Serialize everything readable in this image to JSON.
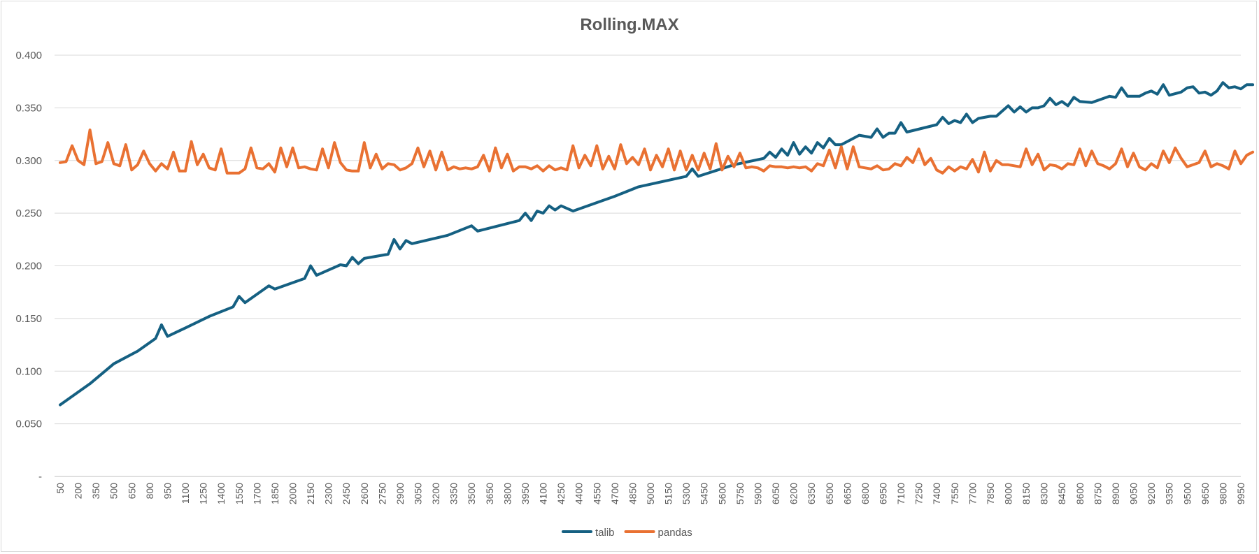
{
  "chart_data": {
    "type": "line",
    "title": "Rolling.MAX",
    "xlabel": "",
    "ylabel": "",
    "ylim": [
      0,
      0.4
    ],
    "y_ticks": [
      "-",
      "0.050",
      "0.100",
      "0.150",
      "0.200",
      "0.250",
      "0.300",
      "0.350",
      "0.400"
    ],
    "grid": true,
    "legend_position": "bottom",
    "x_start": 50,
    "x_step": 50,
    "x_count": 199,
    "x_tick_every": 3,
    "series": [
      {
        "name": "talib",
        "color": "#156082",
        "anchors": [
          [
            50,
            0.068
          ],
          [
            300,
            0.088
          ],
          [
            500,
            0.107
          ],
          [
            700,
            0.119
          ],
          [
            850,
            0.131
          ],
          [
            900,
            0.144
          ],
          [
            950,
            0.133
          ],
          [
            1100,
            0.141
          ],
          [
            1300,
            0.152
          ],
          [
            1500,
            0.161
          ],
          [
            1550,
            0.171
          ],
          [
            1600,
            0.165
          ],
          [
            1800,
            0.181
          ],
          [
            1850,
            0.178
          ],
          [
            2050,
            0.186
          ],
          [
            2100,
            0.188
          ],
          [
            2150,
            0.2
          ],
          [
            2200,
            0.191
          ],
          [
            2400,
            0.201
          ],
          [
            2450,
            0.2
          ],
          [
            2500,
            0.208
          ],
          [
            2550,
            0.202
          ],
          [
            2600,
            0.207
          ],
          [
            2800,
            0.211
          ],
          [
            2850,
            0.225
          ],
          [
            2900,
            0.216
          ],
          [
            2950,
            0.224
          ],
          [
            3000,
            0.221
          ],
          [
            3300,
            0.229
          ],
          [
            3500,
            0.238
          ],
          [
            3550,
            0.233
          ],
          [
            3900,
            0.243
          ],
          [
            3950,
            0.25
          ],
          [
            4000,
            0.243
          ],
          [
            4050,
            0.252
          ],
          [
            4100,
            0.25
          ],
          [
            4150,
            0.257
          ],
          [
            4200,
            0.253
          ],
          [
            4250,
            0.257
          ],
          [
            4350,
            0.252
          ],
          [
            4600,
            0.262
          ],
          [
            4700,
            0.266
          ],
          [
            4900,
            0.275
          ],
          [
            5300,
            0.285
          ],
          [
            5350,
            0.292
          ],
          [
            5400,
            0.285
          ],
          [
            5700,
            0.296
          ],
          [
            5950,
            0.302
          ],
          [
            6000,
            0.308
          ],
          [
            6050,
            0.303
          ],
          [
            6100,
            0.311
          ],
          [
            6150,
            0.305
          ],
          [
            6200,
            0.317
          ],
          [
            6250,
            0.306
          ],
          [
            6300,
            0.313
          ],
          [
            6350,
            0.307
          ],
          [
            6400,
            0.317
          ],
          [
            6450,
            0.312
          ],
          [
            6500,
            0.321
          ],
          [
            6550,
            0.315
          ],
          [
            6600,
            0.315
          ],
          [
            6750,
            0.324
          ],
          [
            6850,
            0.322
          ],
          [
            6900,
            0.33
          ],
          [
            6950,
            0.322
          ],
          [
            7000,
            0.326
          ],
          [
            7050,
            0.326
          ],
          [
            7100,
            0.336
          ],
          [
            7150,
            0.327
          ],
          [
            7400,
            0.334
          ],
          [
            7450,
            0.341
          ],
          [
            7500,
            0.335
          ],
          [
            7550,
            0.338
          ],
          [
            7600,
            0.336
          ],
          [
            7650,
            0.344
          ],
          [
            7700,
            0.336
          ],
          [
            7750,
            0.34
          ],
          [
            7850,
            0.342
          ],
          [
            7900,
            0.342
          ],
          [
            8000,
            0.352
          ],
          [
            8050,
            0.346
          ],
          [
            8100,
            0.351
          ],
          [
            8150,
            0.346
          ],
          [
            8200,
            0.35
          ],
          [
            8250,
            0.35
          ],
          [
            8300,
            0.352
          ],
          [
            8350,
            0.359
          ],
          [
            8400,
            0.353
          ],
          [
            8450,
            0.356
          ],
          [
            8500,
            0.352
          ],
          [
            8550,
            0.36
          ],
          [
            8600,
            0.356
          ],
          [
            8700,
            0.355
          ],
          [
            8850,
            0.361
          ],
          [
            8900,
            0.36
          ],
          [
            8950,
            0.369
          ],
          [
            9000,
            0.361
          ],
          [
            9100,
            0.361
          ],
          [
            9150,
            0.364
          ],
          [
            9200,
            0.366
          ],
          [
            9250,
            0.363
          ],
          [
            9300,
            0.372
          ],
          [
            9350,
            0.362
          ],
          [
            9450,
            0.365
          ],
          [
            9500,
            0.369
          ],
          [
            9550,
            0.37
          ],
          [
            9600,
            0.364
          ],
          [
            9650,
            0.365
          ],
          [
            9700,
            0.362
          ],
          [
            9750,
            0.366
          ],
          [
            9800,
            0.374
          ],
          [
            9850,
            0.369
          ],
          [
            9900,
            0.37
          ],
          [
            9950,
            0.368
          ],
          [
            10000,
            0.372
          ],
          [
            10050,
            0.372
          ]
        ]
      },
      {
        "name": "pandas",
        "color": "#E97132",
        "anchors": [
          [
            50,
            0.298
          ],
          [
            100,
            0.299
          ],
          [
            150,
            0.314
          ],
          [
            200,
            0.3
          ],
          [
            250,
            0.296
          ],
          [
            300,
            0.329
          ],
          [
            350,
            0.297
          ],
          [
            400,
            0.299
          ],
          [
            450,
            0.317
          ],
          [
            500,
            0.297
          ],
          [
            550,
            0.295
          ],
          [
            600,
            0.315
          ],
          [
            650,
            0.291
          ],
          [
            700,
            0.296
          ],
          [
            750,
            0.309
          ],
          [
            800,
            0.297
          ],
          [
            850,
            0.29
          ],
          [
            900,
            0.297
          ],
          [
            950,
            0.292
          ],
          [
            1000,
            0.308
          ],
          [
            1050,
            0.29
          ],
          [
            1100,
            0.29
          ],
          [
            1150,
            0.318
          ],
          [
            1200,
            0.296
          ],
          [
            1250,
            0.306
          ],
          [
            1300,
            0.293
          ],
          [
            1350,
            0.291
          ],
          [
            1400,
            0.311
          ],
          [
            1450,
            0.288
          ],
          [
            1500,
            0.288
          ],
          [
            1550,
            0.288
          ],
          [
            1600,
            0.292
          ],
          [
            1650,
            0.312
          ],
          [
            1700,
            0.293
          ],
          [
            1750,
            0.292
          ],
          [
            1800,
            0.297
          ],
          [
            1850,
            0.289
          ],
          [
            1900,
            0.312
          ],
          [
            1950,
            0.294
          ],
          [
            2000,
            0.312
          ],
          [
            2050,
            0.293
          ],
          [
            2100,
            0.294
          ],
          [
            2150,
            0.292
          ],
          [
            2200,
            0.291
          ],
          [
            2250,
            0.311
          ],
          [
            2300,
            0.293
          ],
          [
            2350,
            0.317
          ],
          [
            2400,
            0.298
          ],
          [
            2450,
            0.291
          ],
          [
            2500,
            0.29
          ],
          [
            2550,
            0.29
          ],
          [
            2600,
            0.317
          ],
          [
            2650,
            0.293
          ],
          [
            2700,
            0.306
          ],
          [
            2750,
            0.292
          ],
          [
            2800,
            0.297
          ],
          [
            2850,
            0.296
          ],
          [
            2900,
            0.291
          ],
          [
            2950,
            0.293
          ],
          [
            3000,
            0.297
          ],
          [
            3050,
            0.312
          ],
          [
            3100,
            0.294
          ],
          [
            3150,
            0.309
          ],
          [
            3200,
            0.291
          ],
          [
            3250,
            0.308
          ],
          [
            3300,
            0.291
          ],
          [
            3350,
            0.294
          ],
          [
            3400,
            0.292
          ],
          [
            3450,
            0.293
          ],
          [
            3500,
            0.292
          ],
          [
            3550,
            0.294
          ],
          [
            3600,
            0.305
          ],
          [
            3650,
            0.29
          ],
          [
            3700,
            0.312
          ],
          [
            3750,
            0.293
          ],
          [
            3800,
            0.306
          ],
          [
            3850,
            0.29
          ],
          [
            3900,
            0.294
          ],
          [
            3950,
            0.294
          ],
          [
            4000,
            0.292
          ],
          [
            4050,
            0.295
          ],
          [
            4100,
            0.29
          ],
          [
            4150,
            0.295
          ],
          [
            4200,
            0.291
          ],
          [
            4250,
            0.293
          ],
          [
            4300,
            0.291
          ],
          [
            4350,
            0.314
          ],
          [
            4400,
            0.293
          ],
          [
            4450,
            0.305
          ],
          [
            4500,
            0.295
          ],
          [
            4550,
            0.314
          ],
          [
            4600,
            0.292
          ],
          [
            4650,
            0.304
          ],
          [
            4700,
            0.292
          ],
          [
            4750,
            0.315
          ],
          [
            4800,
            0.297
          ],
          [
            4850,
            0.303
          ],
          [
            4900,
            0.296
          ],
          [
            4950,
            0.311
          ],
          [
            5000,
            0.291
          ],
          [
            5050,
            0.305
          ],
          [
            5100,
            0.294
          ],
          [
            5150,
            0.311
          ],
          [
            5200,
            0.291
          ],
          [
            5250,
            0.309
          ],
          [
            5300,
            0.291
          ],
          [
            5350,
            0.305
          ],
          [
            5400,
            0.291
          ],
          [
            5450,
            0.307
          ],
          [
            5500,
            0.292
          ],
          [
            5550,
            0.316
          ],
          [
            5600,
            0.291
          ],
          [
            5650,
            0.304
          ],
          [
            5700,
            0.294
          ],
          [
            5750,
            0.307
          ],
          [
            5800,
            0.293
          ],
          [
            5850,
            0.294
          ],
          [
            5900,
            0.293
          ],
          [
            5950,
            0.29
          ],
          [
            6000,
            0.295
          ],
          [
            6050,
            0.294
          ],
          [
            6100,
            0.294
          ],
          [
            6150,
            0.293
          ],
          [
            6200,
            0.294
          ],
          [
            6250,
            0.293
          ],
          [
            6300,
            0.294
          ],
          [
            6350,
            0.29
          ],
          [
            6400,
            0.297
          ],
          [
            6450,
            0.295
          ],
          [
            6500,
            0.31
          ],
          [
            6550,
            0.293
          ],
          [
            6600,
            0.313
          ],
          [
            6650,
            0.292
          ],
          [
            6700,
            0.313
          ],
          [
            6750,
            0.294
          ],
          [
            6800,
            0.293
          ],
          [
            6850,
            0.292
          ],
          [
            6900,
            0.295
          ],
          [
            6950,
            0.291
          ],
          [
            7000,
            0.292
          ],
          [
            7050,
            0.297
          ],
          [
            7100,
            0.295
          ],
          [
            7150,
            0.303
          ],
          [
            7200,
            0.298
          ],
          [
            7250,
            0.311
          ],
          [
            7300,
            0.296
          ],
          [
            7350,
            0.302
          ],
          [
            7400,
            0.291
          ],
          [
            7450,
            0.288
          ],
          [
            7500,
            0.294
          ],
          [
            7550,
            0.29
          ],
          [
            7600,
            0.294
          ],
          [
            7650,
            0.292
          ],
          [
            7700,
            0.301
          ],
          [
            7750,
            0.289
          ],
          [
            7800,
            0.308
          ],
          [
            7850,
            0.29
          ],
          [
            7900,
            0.3
          ],
          [
            7950,
            0.296
          ],
          [
            8000,
            0.296
          ],
          [
            8050,
            0.295
          ],
          [
            8100,
            0.294
          ],
          [
            8150,
            0.311
          ],
          [
            8200,
            0.296
          ],
          [
            8250,
            0.306
          ],
          [
            8300,
            0.291
          ],
          [
            8350,
            0.296
          ],
          [
            8400,
            0.295
          ],
          [
            8450,
            0.292
          ],
          [
            8500,
            0.297
          ],
          [
            8550,
            0.296
          ],
          [
            8600,
            0.311
          ],
          [
            8650,
            0.295
          ],
          [
            8700,
            0.309
          ],
          [
            8750,
            0.297
          ],
          [
            8800,
            0.295
          ],
          [
            8850,
            0.292
          ],
          [
            8900,
            0.297
          ],
          [
            8950,
            0.311
          ],
          [
            9000,
            0.294
          ],
          [
            9050,
            0.307
          ],
          [
            9100,
            0.294
          ],
          [
            9150,
            0.291
          ],
          [
            9200,
            0.297
          ],
          [
            9250,
            0.293
          ],
          [
            9300,
            0.309
          ],
          [
            9350,
            0.298
          ],
          [
            9400,
            0.312
          ],
          [
            9450,
            0.302
          ],
          [
            9500,
            0.294
          ],
          [
            9550,
            0.296
          ],
          [
            9600,
            0.298
          ],
          [
            9650,
            0.309
          ],
          [
            9700,
            0.294
          ],
          [
            9750,
            0.297
          ],
          [
            9800,
            0.295
          ],
          [
            9850,
            0.292
          ],
          [
            9900,
            0.309
          ],
          [
            9950,
            0.297
          ],
          [
            10000,
            0.305
          ],
          [
            10050,
            0.308
          ]
        ]
      }
    ]
  }
}
